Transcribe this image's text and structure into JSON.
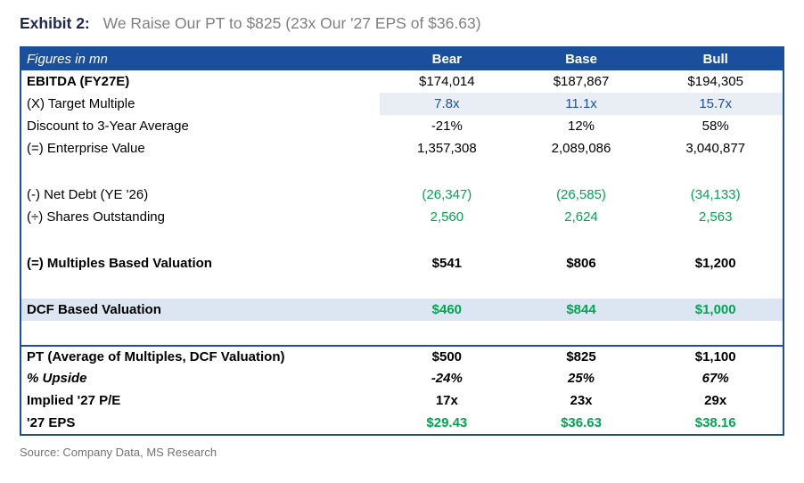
{
  "title": {
    "exhibit_label": "Exhibit 2:",
    "exhibit_text": "We Raise Our PT to $825 (23x Our '27 EPS of $36.63)"
  },
  "table": {
    "header": {
      "label": "Figures in mn",
      "columns": [
        "Bear",
        "Base",
        "Bull"
      ]
    },
    "rows": [
      {
        "label": "EBITDA (FY27E)",
        "values": [
          "$174,014",
          "$187,867",
          "$194,305"
        ],
        "label_bold": true
      },
      {
        "label": "(X) Target Multiple",
        "values": [
          "7.8x",
          "11.1x",
          "15.7x"
        ],
        "value_color": "blue",
        "value_highlight": true
      },
      {
        "label": "Discount to 3-Year Average",
        "values": [
          "-21%",
          "12%",
          "58%"
        ]
      },
      {
        "label": "(=) Enterprise Value",
        "values": [
          "1,357,308",
          "2,089,086",
          "3,040,877"
        ]
      },
      {
        "blank": true
      },
      {
        "label": "(-) Net Debt (YE '26)",
        "values": [
          "(26,347)",
          "(26,585)",
          "(34,133)"
        ],
        "value_color": "green"
      },
      {
        "label": "(÷) Shares Outstanding",
        "values": [
          "2,560",
          "2,624",
          "2,563"
        ],
        "value_color": "green"
      },
      {
        "blank": true
      },
      {
        "label": "(=) Multiples Based Valuation",
        "values": [
          "$541",
          "$806",
          "$1,200"
        ],
        "label_bold": true,
        "value_bold": true
      },
      {
        "blank": true
      },
      {
        "label": "DCF Based Valuation",
        "values": [
          "$460",
          "$844",
          "$1,000"
        ],
        "label_bold": true,
        "value_bold": true,
        "value_color": "green",
        "row_bg": true
      },
      {
        "blank": true
      },
      {
        "label": "PT (Average of Multiples, DCF Valuation)",
        "values": [
          "$500",
          "$825",
          "$1,100"
        ],
        "label_bold": true,
        "value_bold": true,
        "top_border": true
      },
      {
        "label": "% Upside",
        "values": [
          "-24%",
          "25%",
          "67%"
        ],
        "label_bold": true,
        "label_italic": true,
        "value_bold": true,
        "value_italic": true
      },
      {
        "label": "Implied '27 P/E",
        "values": [
          "17x",
          "23x",
          "29x"
        ],
        "label_bold": true,
        "value_bold": true
      },
      {
        "label": "'27 EPS",
        "values": [
          "$29.43",
          "$36.63",
          "$38.16"
        ],
        "label_bold": true,
        "value_bold": true,
        "value_color": "green"
      }
    ]
  },
  "source": "Source: Company Data, MS Research",
  "colors": {
    "header_bg": "#1c4e9e",
    "blue_text": "#1b4f9f",
    "green_text": "#00a651",
    "row_highlight": "#dce6f2",
    "cell_highlight": "#e9edf4",
    "title_gray": "#808080",
    "source_gray": "#737373"
  }
}
